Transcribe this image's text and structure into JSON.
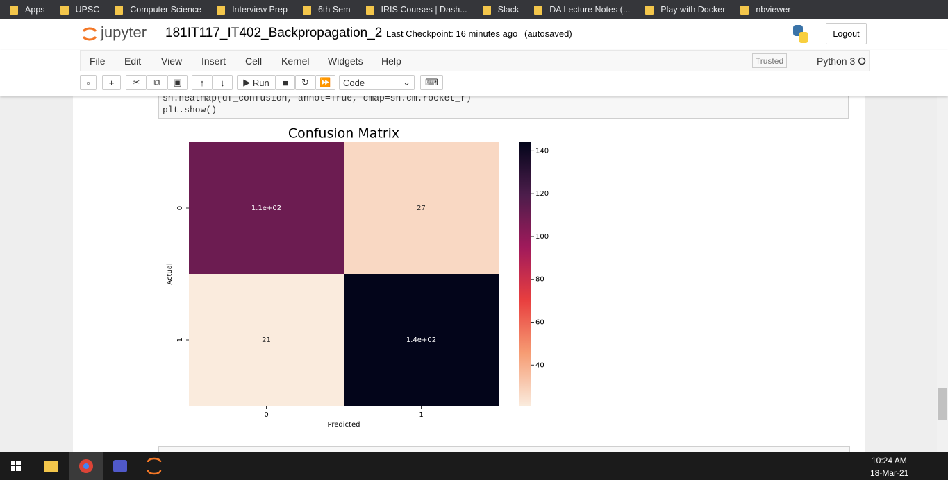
{
  "bookmarks": [
    "Apps",
    "UPSC",
    "Computer Science",
    "Interview Prep",
    "6th Sem",
    "IRIS Courses | Dash...",
    "Slack",
    "DA Lecture Notes (...",
    "Play with Docker",
    "nbviewer"
  ],
  "header": {
    "logo": "jupyter",
    "notebook_name": "181IT117_IT402_Backpropagation_2",
    "checkpoint": "Last Checkpoint: 16 minutes ago",
    "autosave": "(autosaved)",
    "logout": "Logout"
  },
  "menu": [
    "File",
    "Edit",
    "View",
    "Insert",
    "Cell",
    "Kernel",
    "Widgets",
    "Help"
  ],
  "kernel": {
    "trusted": "Trusted",
    "name": "Python 3"
  },
  "toolbar": {
    "run": "Run",
    "cell_type": "Code"
  },
  "code_lines": [
    "sn.heatmap(df_confusion, annot=True, cmap=sn.cm.rocket_r)",
    "plt.show()"
  ],
  "chart_data": {
    "type": "heatmap",
    "title": "Confusion Matrix",
    "xlabel": "Predicted",
    "ylabel": "Actual",
    "x_categories": [
      "0",
      "1"
    ],
    "y_categories": [
      "0",
      "1"
    ],
    "values": [
      [
        110,
        27
      ],
      [
        21,
        144
      ]
    ],
    "value_labels": [
      [
        "1.1e+02",
        "27"
      ],
      [
        "21",
        "1.4e+02"
      ]
    ],
    "colors": [
      "#faebdd",
      "#f69c73",
      "#e83f3f",
      "#a11a5b",
      "#4c1d4b",
      "#03051a"
    ],
    "clim": [
      21,
      144
    ],
    "cticks": [
      40,
      60,
      80,
      100,
      120,
      140
    ]
  },
  "taskbar": {
    "time": "10:24 AM",
    "date": "18-Mar-21"
  }
}
